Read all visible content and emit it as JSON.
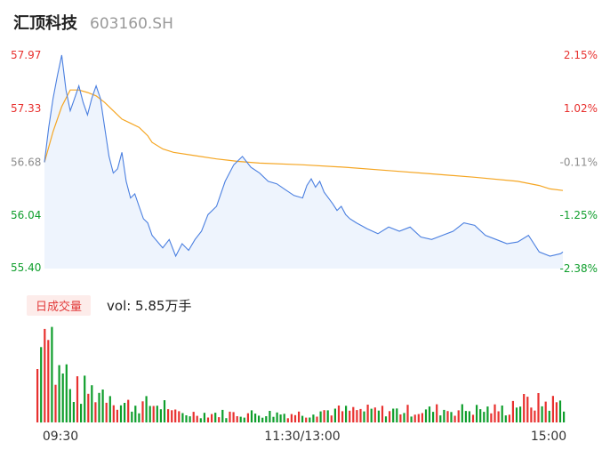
{
  "header": {
    "name": "汇顶科技",
    "code": "603160.SH"
  },
  "volume": {
    "tab_label": "日成交量",
    "vol_text": "vol: 5.85万手"
  },
  "colors": {
    "up": "#e8312f",
    "down": "#0f9e2c",
    "neutral": "#8c8c8c",
    "price_line": "#4a7fe0",
    "avg_line": "#f5a623",
    "fill": "#eef4fd"
  },
  "chart_data": [
    {
      "type": "line",
      "title": "",
      "y_ticks": [
        "57.97",
        "57.33",
        "56.68",
        "56.04",
        "55.40"
      ],
      "ylim": [
        55.4,
        57.97
      ],
      "pct_ticks": [
        "2.15%",
        "1.02%",
        "-0.11%",
        "-1.25%",
        "-2.38%"
      ],
      "x_ticks": [
        "09:30",
        "11:30/13:00",
        "15:00"
      ],
      "series": [
        {
          "role": "price",
          "x": [
            0,
            2,
            4,
            6,
            8,
            10,
            12,
            14,
            16,
            18,
            20,
            22,
            24,
            26,
            28,
            30,
            32,
            34,
            36,
            38,
            40,
            42,
            44,
            46,
            48,
            50,
            55,
            58,
            61,
            64,
            67,
            70,
            73,
            76,
            80,
            84,
            88,
            92,
            96,
            100,
            104,
            108,
            112,
            116,
            120,
            122,
            124,
            126,
            128,
            130,
            132,
            134,
            136,
            138,
            140,
            142,
            145,
            150,
            155,
            160,
            165,
            170,
            175,
            180,
            185,
            190,
            195,
            200,
            205,
            210,
            215,
            220,
            225,
            230,
            235,
            240,
            241
          ],
          "y": [
            56.68,
            57.1,
            57.45,
            57.72,
            57.97,
            57.55,
            57.3,
            57.45,
            57.6,
            57.4,
            57.25,
            57.45,
            57.6,
            57.45,
            57.1,
            56.75,
            56.55,
            56.6,
            56.8,
            56.45,
            56.25,
            56.3,
            56.15,
            56.0,
            55.95,
            55.8,
            55.65,
            55.75,
            55.55,
            55.7,
            55.62,
            55.75,
            55.85,
            56.05,
            56.15,
            56.45,
            56.65,
            56.75,
            56.62,
            56.55,
            56.45,
            56.42,
            56.35,
            56.28,
            56.25,
            56.4,
            56.48,
            56.38,
            56.45,
            56.32,
            56.25,
            56.18,
            56.1,
            56.15,
            56.05,
            56.0,
            55.95,
            55.88,
            55.82,
            55.9,
            55.85,
            55.9,
            55.78,
            55.75,
            55.8,
            55.85,
            55.95,
            55.92,
            55.8,
            55.75,
            55.7,
            55.72,
            55.8,
            55.6,
            55.55,
            55.58,
            55.6
          ]
        },
        {
          "role": "avg",
          "x": [
            0,
            4,
            8,
            12,
            16,
            20,
            24,
            28,
            32,
            36,
            40,
            44,
            48,
            50,
            55,
            60,
            70,
            80,
            90,
            100,
            120,
            140,
            160,
            180,
            200,
            220,
            230,
            235,
            241
          ],
          "y": [
            56.68,
            57.05,
            57.35,
            57.55,
            57.55,
            57.52,
            57.48,
            57.4,
            57.3,
            57.2,
            57.15,
            57.1,
            57.0,
            56.92,
            56.84,
            56.8,
            56.76,
            56.72,
            56.69,
            56.67,
            56.65,
            56.62,
            56.58,
            56.54,
            56.5,
            56.45,
            56.4,
            56.36,
            56.34
          ]
        }
      ]
    },
    {
      "type": "bar",
      "title": "",
      "x_ticks": [
        "09:30",
        "11:30/13:00",
        "15:00"
      ]
    }
  ]
}
